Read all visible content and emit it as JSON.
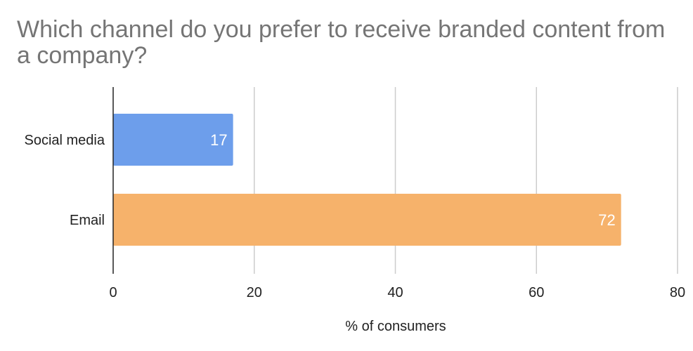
{
  "chart_data": {
    "type": "bar",
    "orientation": "horizontal",
    "title": "Which channel do you prefer to receive branded content from a company?",
    "xlabel": "% of consumers",
    "ylabel": "",
    "categories": [
      "Social media",
      "Email"
    ],
    "values": [
      17,
      72
    ],
    "data_labels": [
      "17",
      "72"
    ],
    "bar_colors": [
      "#6d9eeb",
      "#f6b26b"
    ],
    "xlim": [
      0,
      80
    ],
    "xticks": [
      0,
      20,
      40,
      60,
      80
    ],
    "xtick_labels": [
      "0",
      "20",
      "40",
      "60",
      "80"
    ],
    "grid": true,
    "legend": "none"
  }
}
